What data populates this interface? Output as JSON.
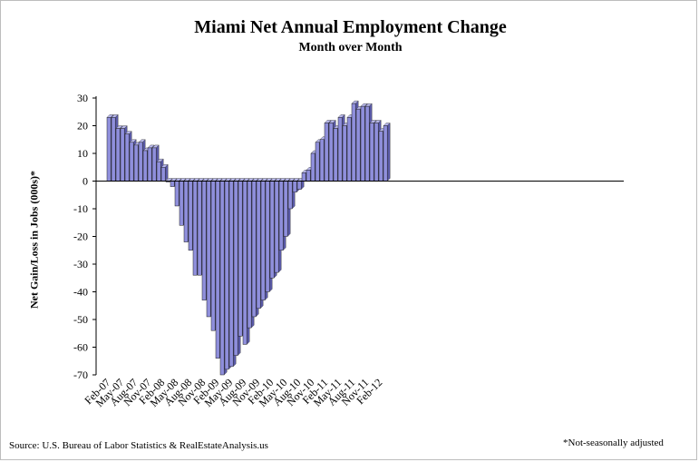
{
  "chart_data": {
    "type": "bar",
    "title": "Miami Net Annual Employment Change",
    "subtitle": "Month over Month",
    "ylabel": "Net Gain/Loss in Jobs (000s)*",
    "xlabel": "",
    "ylim": [
      -70,
      30
    ],
    "yticks": [
      "30",
      "20",
      "10",
      "0",
      "-10",
      "-20",
      "-30",
      "-40",
      "-50",
      "-60",
      "-70"
    ],
    "grid": false,
    "legend": "none",
    "bar_color": "#8f8fdc",
    "categories": [
      "Feb-07",
      "Mar-07",
      "Apr-07",
      "May-07",
      "Jun-07",
      "Jul-07",
      "Aug-07",
      "Sep-07",
      "Oct-07",
      "Nov-07",
      "Dec-07",
      "Jan-08",
      "Feb-08",
      "Mar-08",
      "Apr-08",
      "May-08",
      "Jun-08",
      "Jul-08",
      "Aug-08",
      "Sep-08",
      "Oct-08",
      "Nov-08",
      "Dec-08",
      "Jan-09",
      "Feb-09",
      "Mar-09",
      "Apr-09",
      "May-09",
      "Jun-09",
      "Jul-09",
      "Aug-09",
      "Sep-09",
      "Oct-09",
      "Nov-09",
      "Dec-09",
      "Jan-10",
      "Feb-10",
      "Mar-10",
      "Apr-10",
      "May-10",
      "Jun-10",
      "Jul-10",
      "Aug-10",
      "Sep-10",
      "Oct-10",
      "Nov-10",
      "Dec-10",
      "Jan-11",
      "Feb-11",
      "Mar-11",
      "Apr-11",
      "May-11",
      "Jun-11",
      "Jul-11",
      "Aug-11",
      "Sep-11",
      "Oct-11",
      "Nov-11",
      "Dec-11",
      "Jan-12",
      "Feb-12",
      "Mar-12"
    ],
    "tick_labels": [
      "Feb-07",
      "May-07",
      "Aug-07",
      "Nov-07",
      "Feb-08",
      "May-08",
      "Aug-08",
      "Nov-08",
      "Feb-09",
      "May-09",
      "Aug-09",
      "Nov-09",
      "Feb-10",
      "May-10",
      "Aug-10",
      "Nov-10",
      "Feb-11",
      "May-11",
      "Aug-11",
      "Nov-11",
      "Feb-12"
    ],
    "values": [
      23,
      23,
      19,
      19,
      17,
      14,
      13,
      14,
      11,
      12,
      12,
      7,
      5,
      0,
      -2,
      -9,
      -16,
      -22,
      -25,
      -34,
      -34,
      -43,
      -49,
      -54,
      -64,
      -70,
      -68,
      -67,
      -63,
      -56,
      -59,
      -53,
      -49,
      -46,
      -43,
      -40,
      -35,
      -33,
      -25,
      -20,
      -10,
      -4,
      -3,
      3,
      4,
      10,
      14,
      15,
      21,
      21,
      19,
      23,
      20,
      23,
      28,
      26,
      27,
      27,
      21,
      21,
      18,
      20
    ]
  },
  "footer": {
    "source": "Source: U.S. Bureau of Labor Statistics & RealEstateAnalysis.us",
    "note": "*Not-seasonally adjusted"
  }
}
